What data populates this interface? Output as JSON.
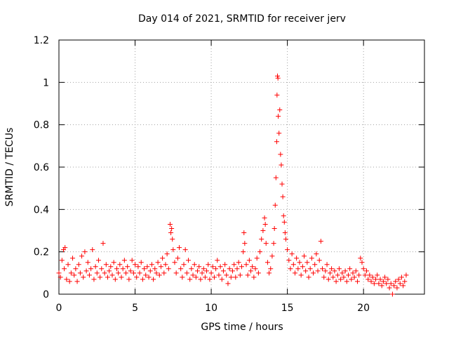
{
  "chart_data": {
    "type": "scatter",
    "title": "Day 014 of 2021, SRMTID for receiver jerv",
    "xlabel": "GPS time / hours",
    "ylabel": "SRMTID / TECUs",
    "xlim": [
      0,
      24
    ],
    "ylim": [
      0,
      1.2
    ],
    "xticks": [
      0,
      5,
      10,
      15,
      20
    ],
    "xtick_labels": [
      "0",
      "5",
      "10",
      "15",
      "20"
    ],
    "yticks": [
      0,
      0.2,
      0.4,
      0.6,
      0.8,
      1.0,
      1.2
    ],
    "ytick_labels": [
      "0",
      "0.2",
      "0.4",
      "0.6",
      "0.8",
      "1",
      "1.2"
    ],
    "grid": true,
    "marker": "+",
    "marker_color": "#ff0000",
    "series": [
      {
        "name": "SRMTID",
        "points": [
          [
            0.0,
            0.1
          ],
          [
            0.1,
            0.08
          ],
          [
            0.2,
            0.16
          ],
          [
            0.3,
            0.21
          ],
          [
            0.35,
            0.12
          ],
          [
            0.4,
            0.22
          ],
          [
            0.5,
            0.07
          ],
          [
            0.6,
            0.14
          ],
          [
            0.7,
            0.06
          ],
          [
            0.8,
            0.1
          ],
          [
            0.9,
            0.17
          ],
          [
            1.0,
            0.09
          ],
          [
            1.1,
            0.12
          ],
          [
            1.2,
            0.06
          ],
          [
            1.3,
            0.14
          ],
          [
            1.4,
            0.1
          ],
          [
            1.5,
            0.18
          ],
          [
            1.6,
            0.08
          ],
          [
            1.7,
            0.2
          ],
          [
            1.8,
            0.11
          ],
          [
            1.9,
            0.15
          ],
          [
            2.0,
            0.09
          ],
          [
            2.1,
            0.12
          ],
          [
            2.2,
            0.21
          ],
          [
            2.3,
            0.07
          ],
          [
            2.4,
            0.13
          ],
          [
            2.5,
            0.1
          ],
          [
            2.6,
            0.16
          ],
          [
            2.7,
            0.08
          ],
          [
            2.8,
            0.12
          ],
          [
            2.9,
            0.24
          ],
          [
            3.0,
            0.1
          ],
          [
            3.1,
            0.14
          ],
          [
            3.2,
            0.08
          ],
          [
            3.3,
            0.11
          ],
          [
            3.4,
            0.13
          ],
          [
            3.5,
            0.09
          ],
          [
            3.6,
            0.15
          ],
          [
            3.7,
            0.07
          ],
          [
            3.8,
            0.12
          ],
          [
            3.9,
            0.1
          ],
          [
            4.0,
            0.14
          ],
          [
            4.1,
            0.08
          ],
          [
            4.2,
            0.12
          ],
          [
            4.3,
            0.16
          ],
          [
            4.4,
            0.1
          ],
          [
            4.5,
            0.13
          ],
          [
            4.6,
            0.07
          ],
          [
            4.7,
            0.11
          ],
          [
            4.8,
            0.16
          ],
          [
            4.9,
            0.1
          ],
          [
            5.0,
            0.14
          ],
          [
            5.1,
            0.08
          ],
          [
            5.2,
            0.13
          ],
          [
            5.3,
            0.1
          ],
          [
            5.4,
            0.15
          ],
          [
            5.5,
            0.07
          ],
          [
            5.6,
            0.12
          ],
          [
            5.7,
            0.09
          ],
          [
            5.8,
            0.13
          ],
          [
            5.9,
            0.08
          ],
          [
            6.0,
            0.11
          ],
          [
            6.1,
            0.14
          ],
          [
            6.2,
            0.07
          ],
          [
            6.3,
            0.12
          ],
          [
            6.4,
            0.1
          ],
          [
            6.5,
            0.15
          ],
          [
            6.6,
            0.09
          ],
          [
            6.7,
            0.13
          ],
          [
            6.8,
            0.17
          ],
          [
            6.9,
            0.1
          ],
          [
            7.0,
            0.14
          ],
          [
            7.1,
            0.19
          ],
          [
            7.2,
            0.12
          ],
          [
            7.3,
            0.33
          ],
          [
            7.35,
            0.29
          ],
          [
            7.4,
            0.31
          ],
          [
            7.45,
            0.26
          ],
          [
            7.5,
            0.21
          ],
          [
            7.6,
            0.15
          ],
          [
            7.7,
            0.1
          ],
          [
            7.8,
            0.17
          ],
          [
            7.9,
            0.22
          ],
          [
            8.0,
            0.12
          ],
          [
            8.1,
            0.08
          ],
          [
            8.2,
            0.14
          ],
          [
            8.3,
            0.21
          ],
          [
            8.4,
            0.1
          ],
          [
            8.5,
            0.16
          ],
          [
            8.6,
            0.07
          ],
          [
            8.7,
            0.12
          ],
          [
            8.8,
            0.09
          ],
          [
            8.9,
            0.14
          ],
          [
            9.0,
            0.08
          ],
          [
            9.1,
            0.11
          ],
          [
            9.2,
            0.13
          ],
          [
            9.3,
            0.07
          ],
          [
            9.4,
            0.1
          ],
          [
            9.5,
            0.12
          ],
          [
            9.6,
            0.08
          ],
          [
            9.7,
            0.11
          ],
          [
            9.8,
            0.14
          ],
          [
            9.9,
            0.07
          ],
          [
            10.0,
            0.1
          ],
          [
            10.1,
            0.13
          ],
          [
            10.2,
            0.08
          ],
          [
            10.3,
            0.12
          ],
          [
            10.4,
            0.16
          ],
          [
            10.5,
            0.09
          ],
          [
            10.6,
            0.13
          ],
          [
            10.7,
            0.07
          ],
          [
            10.8,
            0.11
          ],
          [
            10.9,
            0.14
          ],
          [
            11.0,
            0.09
          ],
          [
            11.1,
            0.05
          ],
          [
            11.2,
            0.12
          ],
          [
            11.3,
            0.08
          ],
          [
            11.4,
            0.11
          ],
          [
            11.5,
            0.14
          ],
          [
            11.6,
            0.08
          ],
          [
            11.7,
            0.12
          ],
          [
            11.8,
            0.15
          ],
          [
            11.9,
            0.09
          ],
          [
            12.0,
            0.13
          ],
          [
            12.1,
            0.2
          ],
          [
            12.15,
            0.29
          ],
          [
            12.2,
            0.24
          ],
          [
            12.3,
            0.14
          ],
          [
            12.4,
            0.09
          ],
          [
            12.5,
            0.16
          ],
          [
            12.6,
            0.11
          ],
          [
            12.7,
            0.13
          ],
          [
            12.8,
            0.08
          ],
          [
            12.9,
            0.12
          ],
          [
            13.0,
            0.17
          ],
          [
            13.1,
            0.1
          ],
          [
            13.2,
            0.2
          ],
          [
            13.3,
            0.26
          ],
          [
            13.4,
            0.3
          ],
          [
            13.5,
            0.36
          ],
          [
            13.55,
            0.33
          ],
          [
            13.6,
            0.24
          ],
          [
            13.7,
            0.15
          ],
          [
            13.8,
            0.1
          ],
          [
            13.9,
            0.12
          ],
          [
            14.0,
            0.18
          ],
          [
            14.1,
            0.24
          ],
          [
            14.15,
            0.31
          ],
          [
            14.2,
            0.42
          ],
          [
            14.25,
            0.55
          ],
          [
            14.3,
            0.72
          ],
          [
            14.32,
            0.94
          ],
          [
            14.35,
            1.03
          ],
          [
            14.38,
            1.02
          ],
          [
            14.4,
            0.84
          ],
          [
            14.45,
            0.76
          ],
          [
            14.5,
            0.87
          ],
          [
            14.55,
            0.66
          ],
          [
            14.6,
            0.61
          ],
          [
            14.65,
            0.52
          ],
          [
            14.7,
            0.46
          ],
          [
            14.75,
            0.37
          ],
          [
            14.8,
            0.34
          ],
          [
            14.85,
            0.29
          ],
          [
            14.9,
            0.26
          ],
          [
            15.0,
            0.21
          ],
          [
            15.1,
            0.16
          ],
          [
            15.2,
            0.12
          ],
          [
            15.3,
            0.19
          ],
          [
            15.4,
            0.14
          ],
          [
            15.5,
            0.1
          ],
          [
            15.6,
            0.17
          ],
          [
            15.7,
            0.12
          ],
          [
            15.8,
            0.15
          ],
          [
            15.9,
            0.09
          ],
          [
            16.0,
            0.13
          ],
          [
            16.1,
            0.18
          ],
          [
            16.2,
            0.11
          ],
          [
            16.3,
            0.15
          ],
          [
            16.4,
            0.08
          ],
          [
            16.5,
            0.12
          ],
          [
            16.6,
            0.17
          ],
          [
            16.7,
            0.1
          ],
          [
            16.8,
            0.14
          ],
          [
            16.9,
            0.19
          ],
          [
            17.0,
            0.11
          ],
          [
            17.1,
            0.16
          ],
          [
            17.2,
            0.25
          ],
          [
            17.3,
            0.12
          ],
          [
            17.4,
            0.08
          ],
          [
            17.5,
            0.11
          ],
          [
            17.6,
            0.14
          ],
          [
            17.7,
            0.07
          ],
          [
            17.8,
            0.1
          ],
          [
            17.9,
            0.12
          ],
          [
            18.0,
            0.08
          ],
          [
            18.1,
            0.11
          ],
          [
            18.2,
            0.06
          ],
          [
            18.3,
            0.09
          ],
          [
            18.4,
            0.12
          ],
          [
            18.5,
            0.07
          ],
          [
            18.6,
            0.1
          ],
          [
            18.7,
            0.08
          ],
          [
            18.8,
            0.11
          ],
          [
            18.9,
            0.06
          ],
          [
            19.0,
            0.09
          ],
          [
            19.1,
            0.12
          ],
          [
            19.2,
            0.07
          ],
          [
            19.3,
            0.1
          ],
          [
            19.4,
            0.08
          ],
          [
            19.5,
            0.11
          ],
          [
            19.6,
            0.06
          ],
          [
            19.7,
            0.09
          ],
          [
            19.8,
            0.17
          ],
          [
            19.9,
            0.15
          ],
          [
            20.0,
            0.12
          ],
          [
            20.1,
            0.09
          ],
          [
            20.2,
            0.11
          ],
          [
            20.3,
            0.07
          ],
          [
            20.4,
            0.09
          ],
          [
            20.5,
            0.06
          ],
          [
            20.6,
            0.08
          ],
          [
            20.7,
            0.05
          ],
          [
            20.8,
            0.07
          ],
          [
            20.9,
            0.09
          ],
          [
            21.0,
            0.05
          ],
          [
            21.1,
            0.07
          ],
          [
            21.2,
            0.04
          ],
          [
            21.3,
            0.06
          ],
          [
            21.4,
            0.08
          ],
          [
            21.5,
            0.05
          ],
          [
            21.6,
            0.07
          ],
          [
            21.7,
            0.03
          ],
          [
            21.8,
            0.05
          ],
          [
            21.9,
            0.0
          ],
          [
            22.0,
            0.04
          ],
          [
            22.1,
            0.06
          ],
          [
            22.2,
            0.03
          ],
          [
            22.3,
            0.07
          ],
          [
            22.4,
            0.05
          ],
          [
            22.5,
            0.08
          ],
          [
            22.6,
            0.04
          ],
          [
            22.7,
            0.06
          ],
          [
            22.8,
            0.09
          ]
        ]
      }
    ]
  }
}
